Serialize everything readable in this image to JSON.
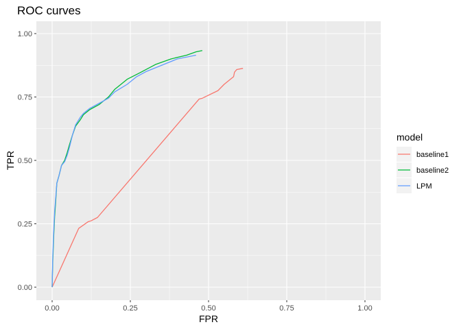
{
  "chart_data": {
    "type": "line",
    "title": "ROC curves",
    "xlabel": "FPR",
    "ylabel": "TPR",
    "xlim": [
      0,
      1
    ],
    "ylim": [
      0,
      1
    ],
    "x_ticks": [
      "0.00",
      "0.25",
      "0.50",
      "0.75",
      "1.00"
    ],
    "y_ticks": [
      "0.00",
      "0.25",
      "0.50",
      "0.75",
      "1.00"
    ],
    "grid": true,
    "legend": {
      "title": "model",
      "position": "right"
    },
    "series": [
      {
        "name": "baseline1",
        "color": "#F8766D",
        "points": [
          [
            0.0,
            0.0
          ],
          [
            0.085,
            0.232
          ],
          [
            0.115,
            0.258
          ],
          [
            0.125,
            0.262
          ],
          [
            0.145,
            0.275
          ],
          [
            0.47,
            0.742
          ],
          [
            0.48,
            0.745
          ],
          [
            0.53,
            0.775
          ],
          [
            0.55,
            0.8
          ],
          [
            0.58,
            0.83
          ],
          [
            0.583,
            0.848
          ],
          [
            0.59,
            0.858
          ],
          [
            0.61,
            0.863
          ]
        ]
      },
      {
        "name": "baseline2",
        "color": "#00BA38",
        "points": [
          [
            0.0,
            0.0
          ],
          [
            0.002,
            0.1
          ],
          [
            0.005,
            0.2
          ],
          [
            0.008,
            0.28
          ],
          [
            0.012,
            0.35
          ],
          [
            0.015,
            0.41
          ],
          [
            0.022,
            0.44
          ],
          [
            0.03,
            0.48
          ],
          [
            0.04,
            0.5
          ],
          [
            0.048,
            0.53
          ],
          [
            0.055,
            0.56
          ],
          [
            0.065,
            0.6
          ],
          [
            0.075,
            0.635
          ],
          [
            0.09,
            0.66
          ],
          [
            0.1,
            0.68
          ],
          [
            0.12,
            0.7
          ],
          [
            0.15,
            0.72
          ],
          [
            0.18,
            0.75
          ],
          [
            0.2,
            0.78
          ],
          [
            0.24,
            0.82
          ],
          [
            0.28,
            0.845
          ],
          [
            0.33,
            0.878
          ],
          [
            0.38,
            0.9
          ],
          [
            0.43,
            0.915
          ],
          [
            0.46,
            0.928
          ],
          [
            0.48,
            0.933
          ]
        ]
      },
      {
        "name": "LPM",
        "color": "#619CFF",
        "points": [
          [
            0.0,
            0.0
          ],
          [
            0.002,
            0.12
          ],
          [
            0.005,
            0.22
          ],
          [
            0.008,
            0.3
          ],
          [
            0.012,
            0.36
          ],
          [
            0.015,
            0.41
          ],
          [
            0.022,
            0.44
          ],
          [
            0.03,
            0.48
          ],
          [
            0.04,
            0.495
          ],
          [
            0.048,
            0.52
          ],
          [
            0.055,
            0.55
          ],
          [
            0.065,
            0.6
          ],
          [
            0.075,
            0.64
          ],
          [
            0.09,
            0.67
          ],
          [
            0.1,
            0.685
          ],
          [
            0.12,
            0.705
          ],
          [
            0.15,
            0.725
          ],
          [
            0.18,
            0.745
          ],
          [
            0.2,
            0.77
          ],
          [
            0.24,
            0.8
          ],
          [
            0.27,
            0.83
          ],
          [
            0.3,
            0.85
          ],
          [
            0.35,
            0.875
          ],
          [
            0.4,
            0.9
          ],
          [
            0.46,
            0.915
          ]
        ]
      }
    ]
  }
}
